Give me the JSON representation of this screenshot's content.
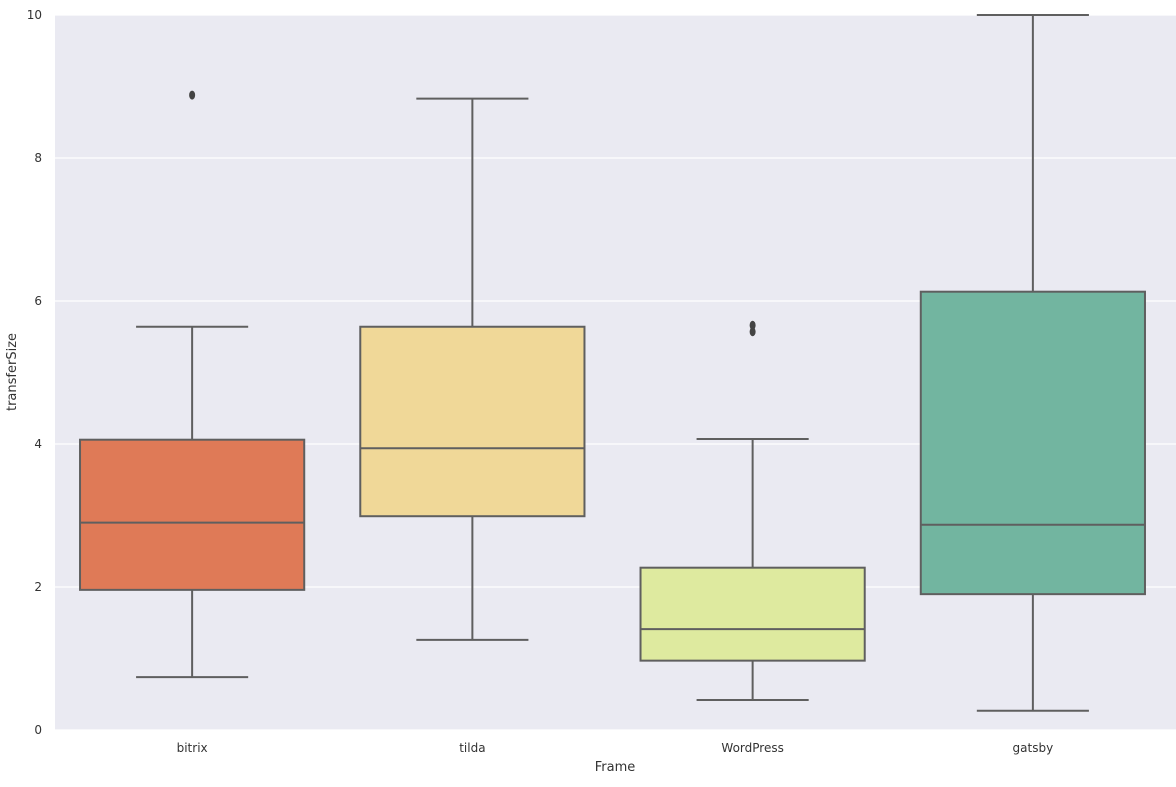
{
  "chart_data": {
    "type": "box",
    "title": "",
    "xlabel": "Frame",
    "ylabel": "transferSize",
    "ylim": [
      0,
      10
    ],
    "yticks": [
      0,
      2,
      4,
      6,
      8,
      10
    ],
    "grid": true,
    "categories": [
      "bitrix",
      "tilda",
      "WordPress",
      "gatsby"
    ],
    "colors": [
      "#df7a57",
      "#f0d898",
      "#deea9f",
      "#72b5a0"
    ],
    "background": "#eaeaf2",
    "boxes": [
      {
        "name": "bitrix",
        "whisker_low": 0.74,
        "q1": 1.96,
        "median": 2.9,
        "q3": 4.06,
        "whisker_high": 5.64,
        "outliers": [
          8.88
        ]
      },
      {
        "name": "tilda",
        "whisker_low": 1.26,
        "q1": 2.99,
        "median": 3.94,
        "q3": 5.64,
        "whisker_high": 8.83,
        "outliers": []
      },
      {
        "name": "WordPress",
        "whisker_low": 0.42,
        "q1": 0.97,
        "median": 1.41,
        "q3": 2.27,
        "whisker_high": 4.07,
        "outliers": [
          5.57,
          5.66
        ]
      },
      {
        "name": "gatsby",
        "whisker_low": 0.27,
        "q1": 1.9,
        "median": 2.87,
        "q3": 6.13,
        "whisker_high": 10.0,
        "outliers": []
      }
    ]
  }
}
